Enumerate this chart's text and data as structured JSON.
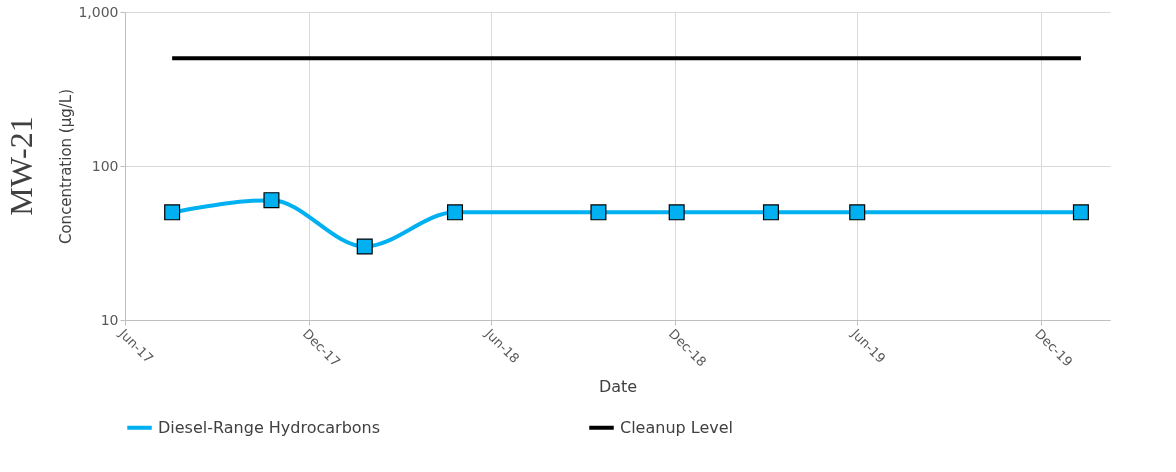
{
  "chart_data": {
    "type": "line",
    "title": "MW-21",
    "xlabel": "Date",
    "ylabel": "Concentration (µg/L)",
    "log": "y",
    "ylim": [
      10,
      1000
    ],
    "yticks": [
      10,
      100,
      {
        "value": 1000,
        "label": "1,000"
      }
    ],
    "xlim": [
      "2017-06-01",
      "2020-02-08"
    ],
    "xticks": [
      {
        "value": "2017-06-01",
        "label": "Jun-17"
      },
      {
        "value": "2017-12-01",
        "label": "Dec-17"
      },
      {
        "value": "2018-06-01",
        "label": "Jun-18"
      },
      {
        "value": "2018-12-01",
        "label": "Dec-18"
      },
      {
        "value": "2019-06-01",
        "label": "Jun-19"
      },
      {
        "value": "2019-12-01",
        "label": "Dec-19"
      }
    ],
    "grid": true,
    "legend": "bottom",
    "line_style": "solid",
    "series": [
      {
        "name": "Diesel-Range Hydrocarbons",
        "color": "#00b0f0",
        "marker": "square",
        "x": [
          "2017-07-18",
          "2017-10-25",
          "2018-01-26",
          "2018-04-26",
          "2018-09-16",
          "2018-12-03",
          "2019-03-07",
          "2019-06-01",
          "2020-01-10"
        ],
        "values": [
          50,
          60,
          30,
          50,
          50,
          50,
          50,
          50,
          50
        ]
      },
      {
        "name": "Cleanup Level",
        "color": "#000000",
        "marker": "none",
        "x": [
          "2017-07-18",
          "2020-01-10"
        ],
        "values": [
          500,
          500
        ]
      }
    ]
  }
}
